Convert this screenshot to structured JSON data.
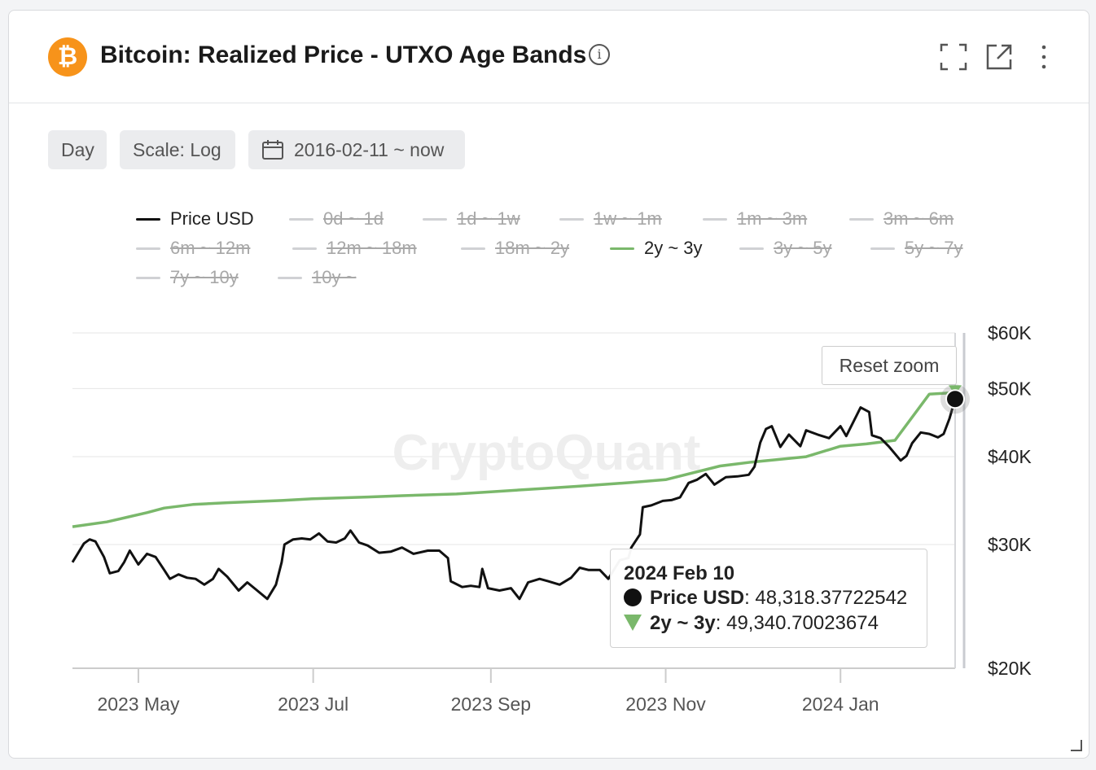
{
  "header": {
    "logo_glyph": "₿",
    "title": "Bitcoin: Realized Price - UTXO Age Bands",
    "info_glyph": "i",
    "icons": [
      "fullscreen-icon",
      "external-link-icon",
      "more-vertical-icon"
    ]
  },
  "toolbar": {
    "interval": "Day",
    "scale": "Scale: Log",
    "date_range": "2016-02-11 ~ now"
  },
  "legend": [
    {
      "label": "Price USD",
      "active": true,
      "color": "#111111"
    },
    {
      "label": "0d ~ 1d",
      "active": false
    },
    {
      "label": "1d ~ 1w",
      "active": false
    },
    {
      "label": "1w ~ 1m",
      "active": false
    },
    {
      "label": "1m ~ 3m",
      "active": false
    },
    {
      "label": "3m ~ 6m",
      "active": false
    },
    {
      "label": "6m ~ 12m",
      "active": false
    },
    {
      "label": "12m ~ 18m",
      "active": false
    },
    {
      "label": "18m ~ 2y",
      "active": false
    },
    {
      "label": "2y ~ 3y",
      "active": true,
      "color": "#7ab86b"
    },
    {
      "label": "3y ~ 5y",
      "active": false
    },
    {
      "label": "5y ~ 7y",
      "active": false
    },
    {
      "label": "7y ~ 10y",
      "active": false
    },
    {
      "label": "10y ~",
      "active": false
    }
  ],
  "reset_zoom_label": "Reset zoom",
  "watermark": "CryptoQuant",
  "tooltip": {
    "date": "2024 Feb 10",
    "rows": [
      {
        "name": "Price USD",
        "value": "48,318.37722542"
      },
      {
        "name": "2y ~ 3y",
        "value": "49,340.70023674"
      }
    ]
  },
  "chart_data": {
    "type": "line",
    "title": "Bitcoin: Realized Price - UTXO Age Bands",
    "scale": "log",
    "x_range": [
      "2023-04-08",
      "2024-02-10"
    ],
    "ylim": [
      20000,
      60000
    ],
    "x_ticks": [
      {
        "date": "2023-05-01",
        "label": "2023 May"
      },
      {
        "date": "2023-07-01",
        "label": "2023 Jul"
      },
      {
        "date": "2023-09-01",
        "label": "2023 Sep"
      },
      {
        "date": "2023-11-01",
        "label": "2023 Nov"
      },
      {
        "date": "2024-01-01",
        "label": "2024 Jan"
      }
    ],
    "y_ticks": [
      {
        "value": 60000,
        "label": "$60K"
      },
      {
        "value": 50000,
        "label": "$50K"
      },
      {
        "value": 40000,
        "label": "$40K"
      },
      {
        "value": 30000,
        "label": "$30K"
      },
      {
        "value": 20000,
        "label": "$20K"
      }
    ],
    "grid": true,
    "legend_position": "top",
    "series": [
      {
        "name": "Price USD",
        "color": "#111111",
        "points": [
          [
            "2023-04-08",
            28300
          ],
          [
            "2023-04-12",
            30100
          ],
          [
            "2023-04-14",
            30500
          ],
          [
            "2023-04-16",
            30300
          ],
          [
            "2023-04-19",
            28800
          ],
          [
            "2023-04-21",
            27300
          ],
          [
            "2023-04-24",
            27500
          ],
          [
            "2023-04-26",
            28300
          ],
          [
            "2023-04-28",
            29400
          ],
          [
            "2023-05-01",
            28100
          ],
          [
            "2023-05-04",
            29100
          ],
          [
            "2023-05-07",
            28800
          ],
          [
            "2023-05-10",
            27600
          ],
          [
            "2023-05-12",
            26800
          ],
          [
            "2023-05-15",
            27200
          ],
          [
            "2023-05-18",
            26900
          ],
          [
            "2023-05-21",
            26800
          ],
          [
            "2023-05-24",
            26300
          ],
          [
            "2023-05-27",
            26800
          ],
          [
            "2023-05-29",
            27700
          ],
          [
            "2023-06-01",
            27000
          ],
          [
            "2023-06-05",
            25800
          ],
          [
            "2023-06-08",
            26500
          ],
          [
            "2023-06-11",
            25900
          ],
          [
            "2023-06-15",
            25100
          ],
          [
            "2023-06-18",
            26300
          ],
          [
            "2023-06-20",
            28300
          ],
          [
            "2023-06-21",
            30000
          ],
          [
            "2023-06-24",
            30500
          ],
          [
            "2023-06-27",
            30600
          ],
          [
            "2023-06-30",
            30500
          ],
          [
            "2023-07-03",
            31100
          ],
          [
            "2023-07-06",
            30300
          ],
          [
            "2023-07-09",
            30200
          ],
          [
            "2023-07-12",
            30600
          ],
          [
            "2023-07-14",
            31400
          ],
          [
            "2023-07-17",
            30200
          ],
          [
            "2023-07-20",
            29900
          ],
          [
            "2023-07-24",
            29200
          ],
          [
            "2023-07-28",
            29300
          ],
          [
            "2023-08-01",
            29700
          ],
          [
            "2023-08-05",
            29100
          ],
          [
            "2023-08-10",
            29400
          ],
          [
            "2023-08-14",
            29400
          ],
          [
            "2023-08-17",
            28700
          ],
          [
            "2023-08-18",
            26600
          ],
          [
            "2023-08-22",
            26100
          ],
          [
            "2023-08-25",
            26200
          ],
          [
            "2023-08-28",
            26100
          ],
          [
            "2023-08-29",
            27700
          ],
          [
            "2023-08-31",
            26000
          ],
          [
            "2023-09-04",
            25800
          ],
          [
            "2023-09-08",
            26000
          ],
          [
            "2023-09-11",
            25100
          ],
          [
            "2023-09-14",
            26500
          ],
          [
            "2023-09-18",
            26800
          ],
          [
            "2023-09-21",
            26600
          ],
          [
            "2023-09-25",
            26300
          ],
          [
            "2023-09-29",
            26900
          ],
          [
            "2023-10-02",
            27800
          ],
          [
            "2023-10-05",
            27600
          ],
          [
            "2023-10-09",
            27600
          ],
          [
            "2023-10-12",
            26800
          ],
          [
            "2023-10-16",
            28500
          ],
          [
            "2023-10-19",
            28700
          ],
          [
            "2023-10-20",
            29700
          ],
          [
            "2023-10-23",
            31000
          ],
          [
            "2023-10-24",
            33900
          ],
          [
            "2023-10-27",
            34100
          ],
          [
            "2023-10-31",
            34600
          ],
          [
            "2023-11-03",
            34700
          ],
          [
            "2023-11-06",
            35000
          ],
          [
            "2023-11-09",
            36700
          ],
          [
            "2023-11-12",
            37100
          ],
          [
            "2023-11-15",
            37800
          ],
          [
            "2023-11-18",
            36500
          ],
          [
            "2023-11-22",
            37400
          ],
          [
            "2023-11-26",
            37500
          ],
          [
            "2023-11-30",
            37700
          ],
          [
            "2023-12-02",
            38700
          ],
          [
            "2023-12-04",
            41900
          ],
          [
            "2023-12-06",
            43800
          ],
          [
            "2023-12-08",
            44200
          ],
          [
            "2023-12-11",
            41300
          ],
          [
            "2023-12-14",
            43000
          ],
          [
            "2023-12-18",
            41400
          ],
          [
            "2023-12-20",
            43600
          ],
          [
            "2023-12-24",
            43000
          ],
          [
            "2023-12-28",
            42500
          ],
          [
            "2024-01-01",
            44200
          ],
          [
            "2024-01-03",
            42800
          ],
          [
            "2024-01-08",
            47000
          ],
          [
            "2024-01-11",
            46300
          ],
          [
            "2024-01-12",
            42900
          ],
          [
            "2024-01-15",
            42500
          ],
          [
            "2024-01-18",
            41300
          ],
          [
            "2024-01-22",
            39500
          ],
          [
            "2024-01-24",
            40100
          ],
          [
            "2024-01-26",
            41800
          ],
          [
            "2024-01-29",
            43300
          ],
          [
            "2024-02-01",
            43100
          ],
          [
            "2024-02-04",
            42600
          ],
          [
            "2024-02-06",
            43100
          ],
          [
            "2024-02-08",
            45300
          ],
          [
            "2024-02-10",
            48318.37722542
          ]
        ]
      },
      {
        "name": "2y ~ 3y",
        "color": "#7ab86b",
        "points": [
          [
            "2023-04-08",
            31800
          ],
          [
            "2023-04-20",
            32300
          ],
          [
            "2023-04-27",
            32800
          ],
          [
            "2023-05-04",
            33300
          ],
          [
            "2023-05-10",
            33800
          ],
          [
            "2023-05-20",
            34200
          ],
          [
            "2023-06-01",
            34400
          ],
          [
            "2023-06-20",
            34650
          ],
          [
            "2023-07-01",
            34850
          ],
          [
            "2023-07-20",
            35050
          ],
          [
            "2023-08-01",
            35200
          ],
          [
            "2023-08-20",
            35400
          ],
          [
            "2023-09-01",
            35650
          ],
          [
            "2023-09-20",
            36050
          ],
          [
            "2023-10-01",
            36300
          ],
          [
            "2023-10-20",
            36750
          ],
          [
            "2023-11-01",
            37100
          ],
          [
            "2023-11-20",
            38800
          ],
          [
            "2023-12-01",
            39300
          ],
          [
            "2023-12-20",
            40000
          ],
          [
            "2024-01-01",
            41400
          ],
          [
            "2024-01-10",
            41700
          ],
          [
            "2024-01-20",
            42200
          ],
          [
            "2024-02-01",
            49100
          ],
          [
            "2024-02-10",
            49340.70023674
          ]
        ]
      }
    ]
  }
}
